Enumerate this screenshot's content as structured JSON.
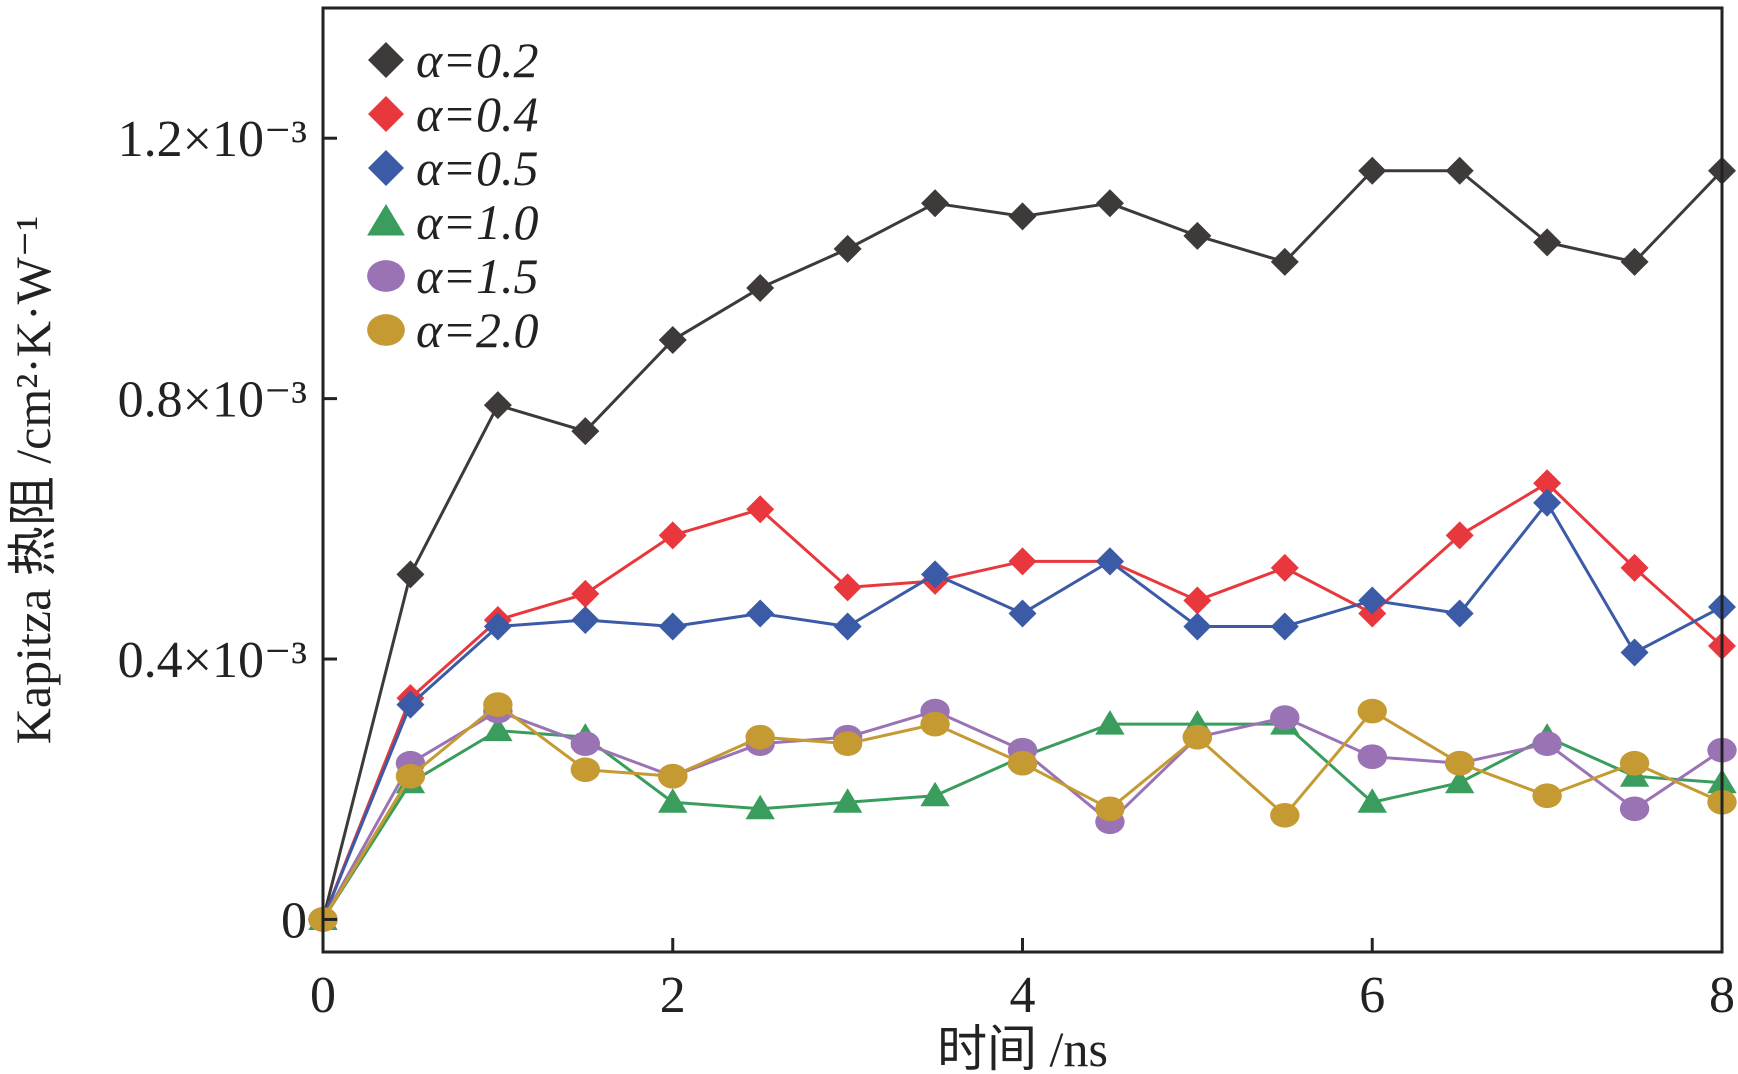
{
  "chart_data": {
    "type": "line",
    "title": "",
    "xlabel": "时间 /ns",
    "ylabel": "Kapitza 热阻 /cm²·K·W⁻¹",
    "xlim": [
      0,
      8
    ],
    "ylim": [
      -5e-05,
      0.0014
    ],
    "x_ticks": [
      {
        "value": 0,
        "label": "0"
      },
      {
        "value": 2,
        "label": "2"
      },
      {
        "value": 4,
        "label": "4"
      },
      {
        "value": 6,
        "label": "6"
      },
      {
        "value": 8,
        "label": "8"
      }
    ],
    "y_ticks": [
      {
        "value": 0,
        "label": "0"
      },
      {
        "value": 0.0004,
        "label": "0.4×10⁻³"
      },
      {
        "value": 0.0008,
        "label": "0.8×10⁻³"
      },
      {
        "value": 0.0012,
        "label": "1.2×10⁻³"
      }
    ],
    "legend_position": "top-left",
    "x": [
      0,
      0.5,
      1,
      1.5,
      2,
      2.5,
      3,
      3.5,
      4,
      4.5,
      5,
      5.5,
      6,
      6.5,
      7,
      7.5,
      8
    ],
    "series": [
      {
        "name": "α=0.2",
        "color": "#3e3a39",
        "marker": "diamond",
        "values": [
          0,
          0.00053,
          0.00079,
          0.00075,
          0.00089,
          0.00097,
          0.00103,
          0.0011,
          0.00108,
          0.0011,
          0.00105,
          0.00101,
          0.00115,
          0.00115,
          0.00104,
          0.00101,
          0.00115
        ]
      },
      {
        "name": "α=0.4",
        "color": "#e8383d",
        "marker": "diamond",
        "values": [
          0,
          0.00034,
          0.00046,
          0.0005,
          0.00059,
          0.00063,
          0.00051,
          0.00052,
          0.00055,
          0.00055,
          0.00049,
          0.00054,
          0.00047,
          0.00059,
          0.00067,
          0.00054,
          0.00042
        ]
      },
      {
        "name": "α=0.5",
        "color": "#3b5ba7",
        "marker": "diamond",
        "values": [
          0,
          0.00033,
          0.00045,
          0.00046,
          0.00045,
          0.00047,
          0.00045,
          0.00053,
          0.00047,
          0.00055,
          0.00045,
          0.00045,
          0.00049,
          0.00047,
          0.00064,
          0.00041,
          0.00048
        ]
      },
      {
        "name": "α=1.0",
        "color": "#3a9d5d",
        "marker": "triangle",
        "values": [
          0,
          0.00021,
          0.00029,
          0.00028,
          0.00018,
          0.00017,
          0.00018,
          0.00019,
          0.00025,
          0.0003,
          0.0003,
          0.0003,
          0.00018,
          0.00021,
          0.00028,
          0.00022,
          0.00021
        ]
      },
      {
        "name": "α=1.5",
        "color": "#9a73b5",
        "marker": "circle",
        "values": [
          0,
          0.00024,
          0.00032,
          0.00027,
          0.00022,
          0.00027,
          0.00028,
          0.00032,
          0.00026,
          0.00015,
          0.00028,
          0.00031,
          0.00025,
          0.00024,
          0.00027,
          0.00017,
          0.00026
        ]
      },
      {
        "name": "α=2.0",
        "color": "#c59a33",
        "marker": "circle",
        "values": [
          0,
          0.00022,
          0.00033,
          0.00023,
          0.00022,
          0.00028,
          0.00027,
          0.0003,
          0.00024,
          0.00017,
          0.00028,
          0.00016,
          0.00032,
          0.00024,
          0.00019,
          0.00024,
          0.00018
        ]
      }
    ]
  }
}
